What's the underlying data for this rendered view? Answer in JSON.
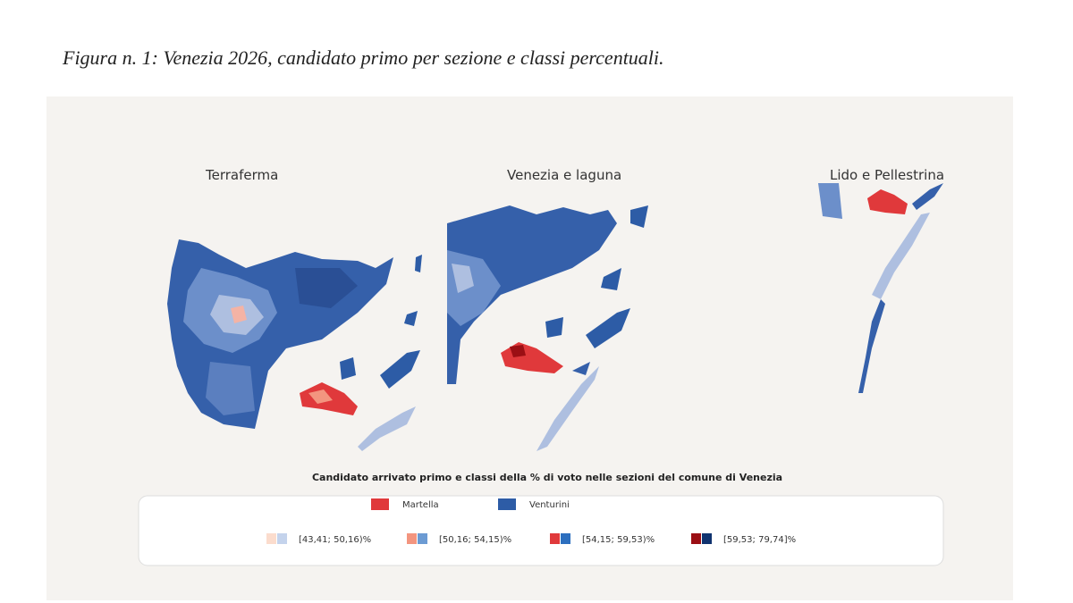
{
  "caption": "Figura n. 1: Venezia 2026, candidato primo per sezione e classi percentuali.",
  "panels": [
    {
      "title": "Terraferma"
    },
    {
      "title": "Venezia e laguna"
    },
    {
      "title": "Lido e Pellestrina"
    }
  ],
  "legend": {
    "title": "Candidato arrivato primo e  classi della % di voto nelle sezioni del comune di Venezia",
    "candidates": [
      {
        "name": "Martella",
        "color": "#e0393b"
      },
      {
        "name": "Venturini",
        "color": "#2d5ca6"
      }
    ],
    "classes": [
      {
        "label": "[43,41; 50,16)%",
        "colors": [
          "#fbdccd",
          "#c4d3ec"
        ]
      },
      {
        "label": "[50,16; 54,15)%",
        "colors": [
          "#f3957f",
          "#6c9bd3"
        ]
      },
      {
        "label": "[54,15; 59,53)%",
        "colors": [
          "#e0393b",
          "#2d6fbf"
        ]
      },
      {
        "label": "[59,53; 79,74]%",
        "colors": [
          "#9b0f14",
          "#10336f"
        ]
      }
    ]
  }
}
